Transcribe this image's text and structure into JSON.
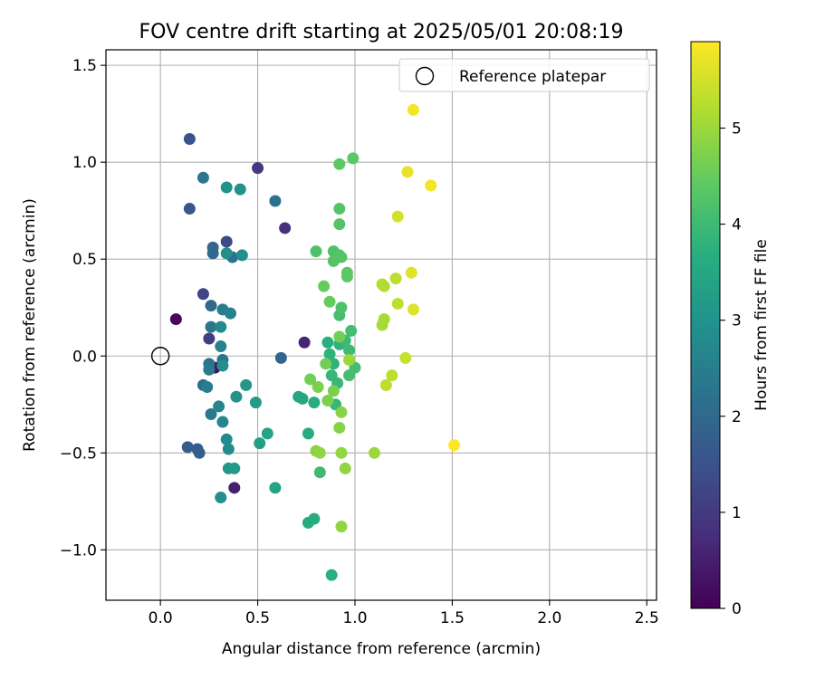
{
  "chart_data": {
    "type": "scatter",
    "title": "FOV centre drift starting at 2025/05/01 20:08:19",
    "xlabel": "Angular distance from reference (arcmin)",
    "ylabel": "Rotation from reference (arcmin)",
    "xlim": [
      -0.28,
      2.55
    ],
    "ylim": [
      -1.26,
      1.58
    ],
    "xticks": [
      0.0,
      0.5,
      1.0,
      1.5,
      2.0,
      2.5
    ],
    "xtick_labels": [
      "0.0",
      "0.5",
      "1.0",
      "1.5",
      "2.0",
      "2.5"
    ],
    "yticks": [
      -1.0,
      -0.5,
      0.0,
      0.5,
      1.0,
      1.5
    ],
    "ytick_labels": [
      "−1.0",
      "−0.5",
      "0.0",
      "0.5",
      "1.0",
      "1.5"
    ],
    "grid": true,
    "legend": {
      "placement": "top-right",
      "label": "Reference platepar"
    },
    "reference_point": {
      "x": 0.0,
      "y": 0.0
    },
    "colorbar": {
      "label": "Hours from first FF file",
      "min": 0,
      "max": 5.9,
      "ticks": [
        0,
        1,
        2,
        3,
        4,
        5
      ],
      "tick_labels": [
        "0",
        "1",
        "2",
        "3",
        "4",
        "5"
      ],
      "colormap": "viridis"
    },
    "points": [
      {
        "x": 0.08,
        "y": 0.19,
        "t": 0.1
      },
      {
        "x": 0.28,
        "y": -0.06,
        "t": 0.3
      },
      {
        "x": 0.38,
        "y": -0.68,
        "t": 0.5
      },
      {
        "x": 0.74,
        "y": 0.07,
        "t": 0.6
      },
      {
        "x": 0.64,
        "y": 0.66,
        "t": 0.8
      },
      {
        "x": 0.5,
        "y": 0.97,
        "t": 1.0
      },
      {
        "x": 0.25,
        "y": 0.09,
        "t": 1.1
      },
      {
        "x": 0.22,
        "y": 0.32,
        "t": 1.2
      },
      {
        "x": 0.34,
        "y": 0.59,
        "t": 1.3
      },
      {
        "x": 0.15,
        "y": 1.12,
        "t": 1.5
      },
      {
        "x": 0.15,
        "y": 0.76,
        "t": 1.6
      },
      {
        "x": 0.14,
        "y": -0.47,
        "t": 1.7
      },
      {
        "x": 0.2,
        "y": -0.5,
        "t": 1.8
      },
      {
        "x": 0.19,
        "y": -0.48,
        "t": 1.75
      },
      {
        "x": 0.62,
        "y": -0.01,
        "t": 1.9
      },
      {
        "x": 0.27,
        "y": 0.53,
        "t": 2.0
      },
      {
        "x": 0.27,
        "y": 0.56,
        "t": 1.95
      },
      {
        "x": 0.22,
        "y": -0.15,
        "t": 2.1
      },
      {
        "x": 0.26,
        "y": 0.26,
        "t": 2.0
      },
      {
        "x": 0.37,
        "y": 0.51,
        "t": 2.2
      },
      {
        "x": 0.22,
        "y": 0.92,
        "t": 2.3
      },
      {
        "x": 0.59,
        "y": 0.8,
        "t": 2.2
      },
      {
        "x": 0.25,
        "y": -0.04,
        "t": 2.2
      },
      {
        "x": 0.26,
        "y": 0.15,
        "t": 2.3
      },
      {
        "x": 0.25,
        "y": -0.07,
        "t": 2.4
      },
      {
        "x": 0.26,
        "y": -0.3,
        "t": 2.4
      },
      {
        "x": 0.32,
        "y": -0.02,
        "t": 2.3
      },
      {
        "x": 0.24,
        "y": -0.16,
        "t": 2.5
      },
      {
        "x": 0.32,
        "y": 0.24,
        "t": 2.5
      },
      {
        "x": 0.36,
        "y": 0.22,
        "t": 2.6
      },
      {
        "x": 0.31,
        "y": 0.05,
        "t": 2.6
      },
      {
        "x": 0.3,
        "y": -0.26,
        "t": 2.7
      },
      {
        "x": 0.32,
        "y": -0.34,
        "t": 2.7
      },
      {
        "x": 0.35,
        "y": -0.48,
        "t": 2.8
      },
      {
        "x": 0.34,
        "y": -0.43,
        "t": 2.8
      },
      {
        "x": 0.31,
        "y": 0.15,
        "t": 2.8
      },
      {
        "x": 0.32,
        "y": -0.05,
        "t": 2.9
      },
      {
        "x": 0.34,
        "y": 0.53,
        "t": 2.9
      },
      {
        "x": 0.42,
        "y": 0.52,
        "t": 2.9
      },
      {
        "x": 0.34,
        "y": 0.87,
        "t": 3.0
      },
      {
        "x": 0.41,
        "y": 0.86,
        "t": 3.0
      },
      {
        "x": 0.39,
        "y": -0.21,
        "t": 3.0
      },
      {
        "x": 0.44,
        "y": -0.15,
        "t": 3.1
      },
      {
        "x": 0.31,
        "y": -0.73,
        "t": 2.9
      },
      {
        "x": 0.35,
        "y": -0.58,
        "t": 3.1
      },
      {
        "x": 0.38,
        "y": -0.58,
        "t": 3.2
      },
      {
        "x": 0.49,
        "y": -0.24,
        "t": 3.2
      },
      {
        "x": 0.51,
        "y": -0.45,
        "t": 3.3
      },
      {
        "x": 0.55,
        "y": -0.4,
        "t": 3.4
      },
      {
        "x": 0.59,
        "y": -0.68,
        "t": 3.4
      },
      {
        "x": 0.71,
        "y": -0.21,
        "t": 3.5
      },
      {
        "x": 0.73,
        "y": -0.22,
        "t": 3.5
      },
      {
        "x": 0.76,
        "y": -0.4,
        "t": 3.6
      },
      {
        "x": 0.79,
        "y": -0.24,
        "t": 3.6
      },
      {
        "x": 0.76,
        "y": -0.86,
        "t": 3.6
      },
      {
        "x": 0.79,
        "y": -0.84,
        "t": 3.6
      },
      {
        "x": 0.88,
        "y": -1.13,
        "t": 3.7
      },
      {
        "x": 0.86,
        "y": 0.07,
        "t": 3.7
      },
      {
        "x": 0.87,
        "y": 0.01,
        "t": 3.8
      },
      {
        "x": 0.92,
        "y": 0.06,
        "t": 3.8
      },
      {
        "x": 0.89,
        "y": -0.04,
        "t": 3.8
      },
      {
        "x": 0.88,
        "y": -0.1,
        "t": 3.9
      },
      {
        "x": 0.91,
        "y": -0.14,
        "t": 3.9
      },
      {
        "x": 0.9,
        "y": -0.25,
        "t": 3.9
      },
      {
        "x": 0.97,
        "y": 0.03,
        "t": 4.0
      },
      {
        "x": 0.95,
        "y": 0.08,
        "t": 4.0
      },
      {
        "x": 0.98,
        "y": 0.13,
        "t": 4.1
      },
      {
        "x": 1.0,
        "y": -0.06,
        "t": 4.1
      },
      {
        "x": 0.97,
        "y": -0.1,
        "t": 4.1
      },
      {
        "x": 0.92,
        "y": 0.21,
        "t": 4.1
      },
      {
        "x": 0.93,
        "y": 0.25,
        "t": 4.2
      },
      {
        "x": 0.8,
        "y": 0.54,
        "t": 4.2
      },
      {
        "x": 0.89,
        "y": 0.54,
        "t": 4.2
      },
      {
        "x": 0.89,
        "y": 0.49,
        "t": 4.3
      },
      {
        "x": 0.92,
        "y": 0.52,
        "t": 4.3
      },
      {
        "x": 0.93,
        "y": 0.51,
        "t": 4.3
      },
      {
        "x": 0.96,
        "y": 0.43,
        "t": 4.4
      },
      {
        "x": 0.96,
        "y": 0.41,
        "t": 4.4
      },
      {
        "x": 0.92,
        "y": 0.68,
        "t": 4.3
      },
      {
        "x": 0.92,
        "y": 0.76,
        "t": 4.3
      },
      {
        "x": 0.92,
        "y": 0.99,
        "t": 4.4
      },
      {
        "x": 0.99,
        "y": 1.02,
        "t": 4.4
      },
      {
        "x": 0.87,
        "y": 0.28,
        "t": 4.5
      },
      {
        "x": 0.84,
        "y": 0.36,
        "t": 4.5
      },
      {
        "x": 0.92,
        "y": 0.1,
        "t": 4.6
      },
      {
        "x": 0.85,
        "y": -0.04,
        "t": 4.6
      },
      {
        "x": 0.77,
        "y": -0.12,
        "t": 4.6
      },
      {
        "x": 0.81,
        "y": -0.16,
        "t": 4.7
      },
      {
        "x": 0.86,
        "y": -0.23,
        "t": 4.7
      },
      {
        "x": 0.89,
        "y": -0.18,
        "t": 4.7
      },
      {
        "x": 0.93,
        "y": -0.29,
        "t": 4.8
      },
      {
        "x": 0.92,
        "y": -0.37,
        "t": 4.8
      },
      {
        "x": 0.8,
        "y": -0.49,
        "t": 4.8
      },
      {
        "x": 0.82,
        "y": -0.5,
        "t": 4.9
      },
      {
        "x": 0.93,
        "y": -0.5,
        "t": 4.9
      },
      {
        "x": 0.82,
        "y": -0.6,
        "t": 4.0
      },
      {
        "x": 0.95,
        "y": -0.58,
        "t": 4.9
      },
      {
        "x": 0.93,
        "y": -0.88,
        "t": 4.9
      },
      {
        "x": 0.97,
        "y": -0.02,
        "t": 5.0
      },
      {
        "x": 1.1,
        "y": -0.5,
        "t": 5.0
      },
      {
        "x": 1.14,
        "y": 0.16,
        "t": 5.1
      },
      {
        "x": 1.15,
        "y": 0.19,
        "t": 5.1
      },
      {
        "x": 1.14,
        "y": 0.37,
        "t": 5.2
      },
      {
        "x": 1.15,
        "y": 0.36,
        "t": 5.2
      },
      {
        "x": 1.21,
        "y": 0.4,
        "t": 5.3
      },
      {
        "x": 1.22,
        "y": 0.27,
        "t": 5.3
      },
      {
        "x": 1.19,
        "y": -0.1,
        "t": 5.3
      },
      {
        "x": 1.16,
        "y": -0.15,
        "t": 5.3
      },
      {
        "x": 1.26,
        "y": -0.01,
        "t": 5.4
      },
      {
        "x": 1.22,
        "y": 0.72,
        "t": 5.5
      },
      {
        "x": 1.29,
        "y": 0.43,
        "t": 5.6
      },
      {
        "x": 1.3,
        "y": 0.24,
        "t": 5.6
      },
      {
        "x": 1.27,
        "y": 0.95,
        "t": 5.7
      },
      {
        "x": 1.39,
        "y": 0.88,
        "t": 5.8
      },
      {
        "x": 1.3,
        "y": 1.27,
        "t": 5.8
      },
      {
        "x": 1.51,
        "y": -0.46,
        "t": 5.9
      }
    ]
  }
}
